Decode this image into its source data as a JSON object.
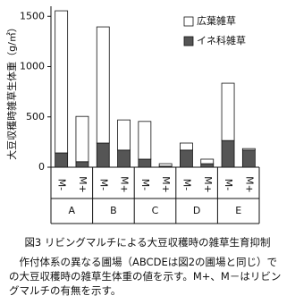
{
  "chart_data": {
    "type": "stacked_bar",
    "ylabel": "大豆収穫時雑草生体重（g/㎡）",
    "categories": [
      "M-",
      "M+",
      "M-",
      "M+",
      "M-",
      "M+",
      "M-",
      "M+",
      "M-",
      "M+"
    ],
    "groups": [
      "A",
      "B",
      "C",
      "D",
      "E"
    ],
    "series": [
      {
        "name": "イネ科雑草",
        "color": "#555555",
        "values": [
          142,
          55,
          240,
          170,
          80,
          10,
          170,
          35,
          265,
          170
        ]
      },
      {
        "name": "広葉雑草",
        "color": "#ffffff",
        "values": [
          1413,
          450,
          1155,
          300,
          375,
          25,
          70,
          45,
          570,
          15
        ]
      }
    ],
    "ylim": [
      0,
      1600
    ],
    "yticks": [
      0,
      500,
      1000,
      1500
    ],
    "legend": "top-right"
  },
  "caption": "図3 リビングマルチによる大豆収穫時の雑草生育抑制",
  "note": "作付体系の異なる圃場（ABCDEは図2の圃場と同じ）での大豆収穫時の雑草生体重の値を示す。M+、M－はリビングマルチの有無を示す。"
}
